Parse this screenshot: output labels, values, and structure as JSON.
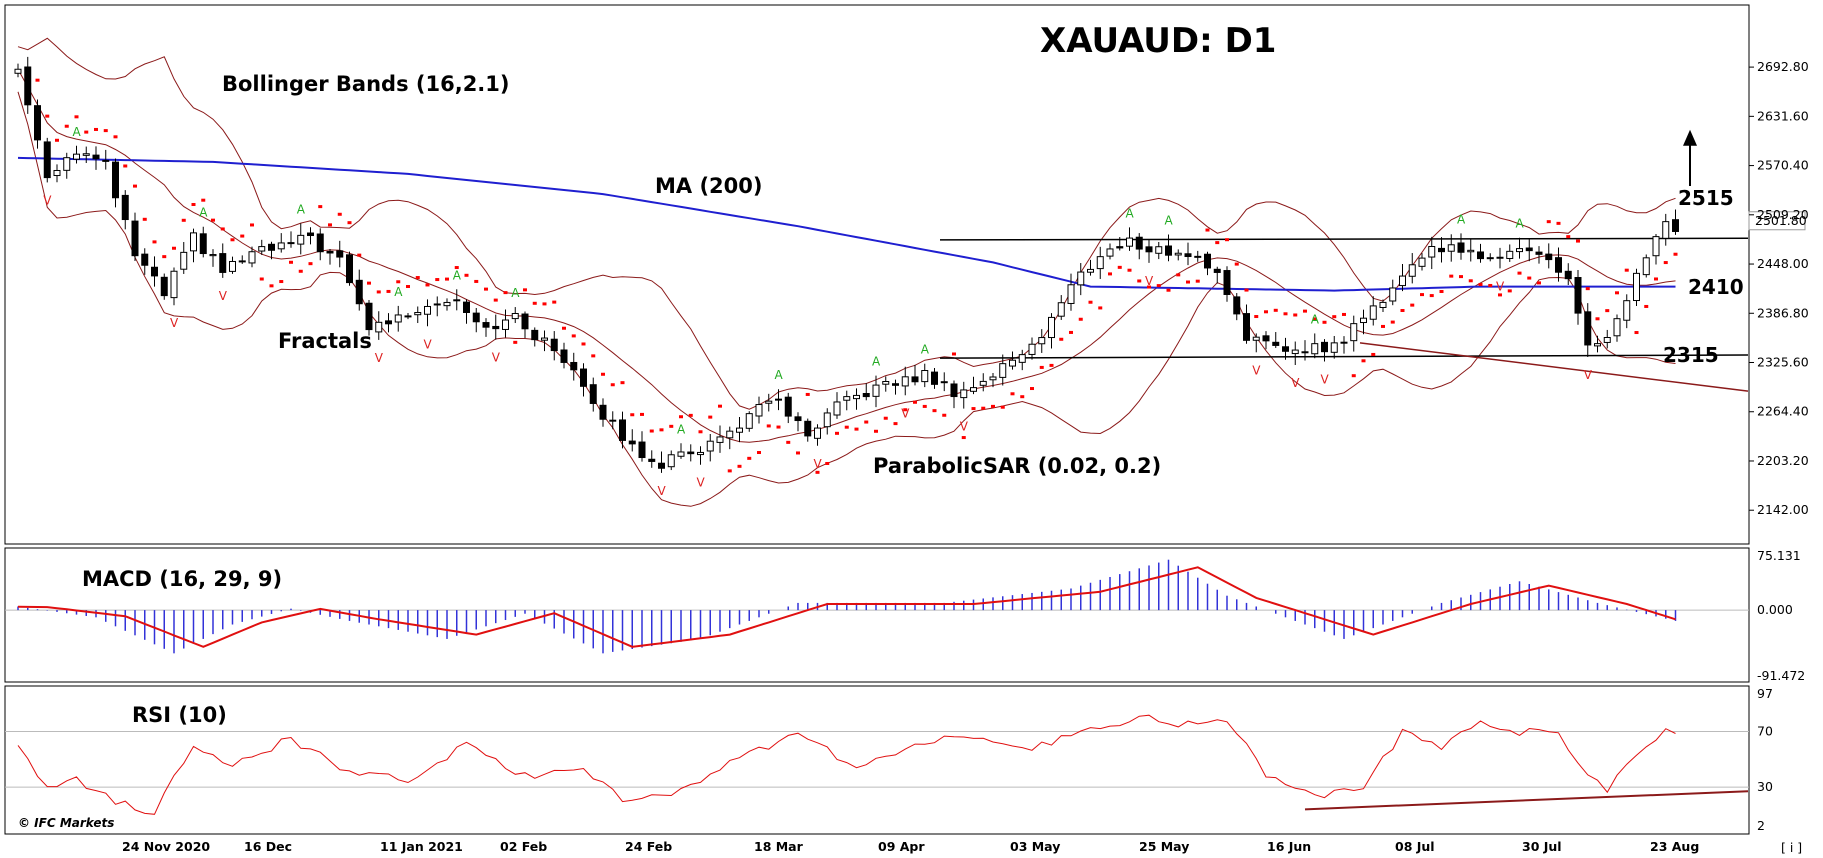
{
  "chart_data": [
    {
      "type": "candlestick",
      "title": "XAUAUD: D1",
      "ylim": [
        2100,
        2770
      ],
      "y_ticks": [
        "2692.80",
        "2631.60",
        "2570.40",
        "2509.20",
        "2448.00",
        "2386.80",
        "2325.60",
        "2264.40",
        "2203.20",
        "2142.00"
      ],
      "current_price": "2501.80",
      "x_ticks": [
        "24 Nov 2020",
        "16 Dec",
        "11 Jan 2021",
        "02 Feb",
        "24 Feb",
        "18 Mar",
        "09 Apr",
        "03 May",
        "25 May",
        "16 Jun",
        "08 Jul",
        "30 Jul",
        "23 Aug"
      ],
      "indicators": [
        "Bollinger Bands (16,2.1)",
        "MA (200)",
        "Fractals",
        "ParabolicSAR (0.02, 0.2)"
      ],
      "levels": [
        {
          "label": "2515",
          "value": 2515,
          "arrow": "up"
        },
        {
          "label": "2410",
          "value": 2410
        },
        {
          "label": "2315",
          "value": 2315
        }
      ],
      "close_anchors": [
        [
          0,
          2690
        ],
        [
          3,
          2560
        ],
        [
          6,
          2590
        ],
        [
          9,
          2570
        ],
        [
          12,
          2460
        ],
        [
          15,
          2410
        ],
        [
          18,
          2480
        ],
        [
          21,
          2440
        ],
        [
          24,
          2460
        ],
        [
          27,
          2470
        ],
        [
          30,
          2480
        ],
        [
          33,
          2450
        ],
        [
          36,
          2370
        ],
        [
          39,
          2380
        ],
        [
          42,
          2400
        ],
        [
          45,
          2405
        ],
        [
          48,
          2370
        ],
        [
          51,
          2380
        ],
        [
          54,
          2350
        ],
        [
          57,
          2320
        ],
        [
          60,
          2260
        ],
        [
          63,
          2220
        ],
        [
          66,
          2200
        ],
        [
          69,
          2215
        ],
        [
          72,
          2230
        ],
        [
          75,
          2260
        ],
        [
          78,
          2280
        ],
        [
          81,
          2230
        ],
        [
          84,
          2270
        ],
        [
          87,
          2290
        ],
        [
          90,
          2300
        ],
        [
          93,
          2310
        ],
        [
          96,
          2290
        ],
        [
          99,
          2300
        ],
        [
          102,
          2330
        ],
        [
          105,
          2360
        ],
        [
          108,
          2420
        ],
        [
          111,
          2460
        ],
        [
          114,
          2475
        ],
        [
          117,
          2465
        ],
        [
          120,
          2460
        ],
        [
          123,
          2440
        ],
        [
          126,
          2360
        ],
        [
          129,
          2340
        ],
        [
          132,
          2345
        ],
        [
          135,
          2345
        ],
        [
          138,
          2380
        ],
        [
          141,
          2420
        ],
        [
          144,
          2460
        ],
        [
          147,
          2475
        ],
        [
          150,
          2450
        ],
        [
          153,
          2470
        ],
        [
          156,
          2460
        ],
        [
          159,
          2430
        ],
        [
          161,
          2345
        ],
        [
          163,
          2350
        ],
        [
          165,
          2400
        ],
        [
          167,
          2460
        ],
        [
          169,
          2500
        ],
        [
          170,
          2490
        ]
      ],
      "ma200_anchors": [
        [
          0,
          2580
        ],
        [
          20,
          2575
        ],
        [
          40,
          2560
        ],
        [
          60,
          2535
        ],
        [
          80,
          2495
        ],
        [
          100,
          2450
        ],
        [
          110,
          2420
        ],
        [
          120,
          2418
        ],
        [
          135,
          2415
        ],
        [
          150,
          2420
        ],
        [
          171,
          2420
        ]
      ],
      "series": [
        {
          "name": "MACD (16, 29, 9)",
          "ylim": [
            -91.472,
            75.131
          ],
          "y_ticks": [
            "75.131",
            "0.000",
            "-91.472"
          ],
          "anchors": [
            [
              0,
              5
            ],
            [
              8,
              -10
            ],
            [
              16,
              -60
            ],
            [
              22,
              -20
            ],
            [
              28,
              2
            ],
            [
              34,
              -15
            ],
            [
              44,
              -40
            ],
            [
              52,
              -5
            ],
            [
              60,
              -60
            ],
            [
              70,
              -40
            ],
            [
              80,
              10
            ],
            [
              95,
              10
            ],
            [
              108,
              30
            ],
            [
              118,
              70
            ],
            [
              124,
              20
            ],
            [
              136,
              -40
            ],
            [
              146,
              10
            ],
            [
              154,
              40
            ],
            [
              162,
              10
            ],
            [
              170,
              -15
            ]
          ]
        },
        {
          "name": "RSI (10)",
          "ylim": [
            2,
            97
          ],
          "y_ticks": [
            "97",
            "70",
            "30",
            "2"
          ],
          "anchors": [
            [
              0,
              60
            ],
            [
              3,
              30
            ],
            [
              6,
              35
            ],
            [
              10,
              20
            ],
            [
              14,
              12
            ],
            [
              18,
              60
            ],
            [
              22,
              45
            ],
            [
              28,
              65
            ],
            [
              34,
              40
            ],
            [
              40,
              35
            ],
            [
              46,
              60
            ],
            [
              52,
              38
            ],
            [
              58,
              42
            ],
            [
              62,
              20
            ],
            [
              68,
              28
            ],
            [
              75,
              55
            ],
            [
              80,
              68
            ],
            [
              86,
              45
            ],
            [
              92,
              60
            ],
            [
              98,
              68
            ],
            [
              104,
              58
            ],
            [
              110,
              72
            ],
            [
              115,
              80
            ],
            [
              120,
              75
            ],
            [
              124,
              78
            ],
            [
              128,
              40
            ],
            [
              131,
              30
            ],
            [
              134,
              25
            ],
            [
              138,
              30
            ],
            [
              142,
              70
            ],
            [
              146,
              60
            ],
            [
              150,
              76
            ],
            [
              154,
              70
            ],
            [
              158,
              68
            ],
            [
              161,
              40
            ],
            [
              163,
              28
            ],
            [
              166,
              55
            ],
            [
              169,
              72
            ],
            [
              170,
              68
            ]
          ]
        }
      ]
    }
  ],
  "copyright": "© IFC Markets",
  "corner_icon": "[ i ]"
}
